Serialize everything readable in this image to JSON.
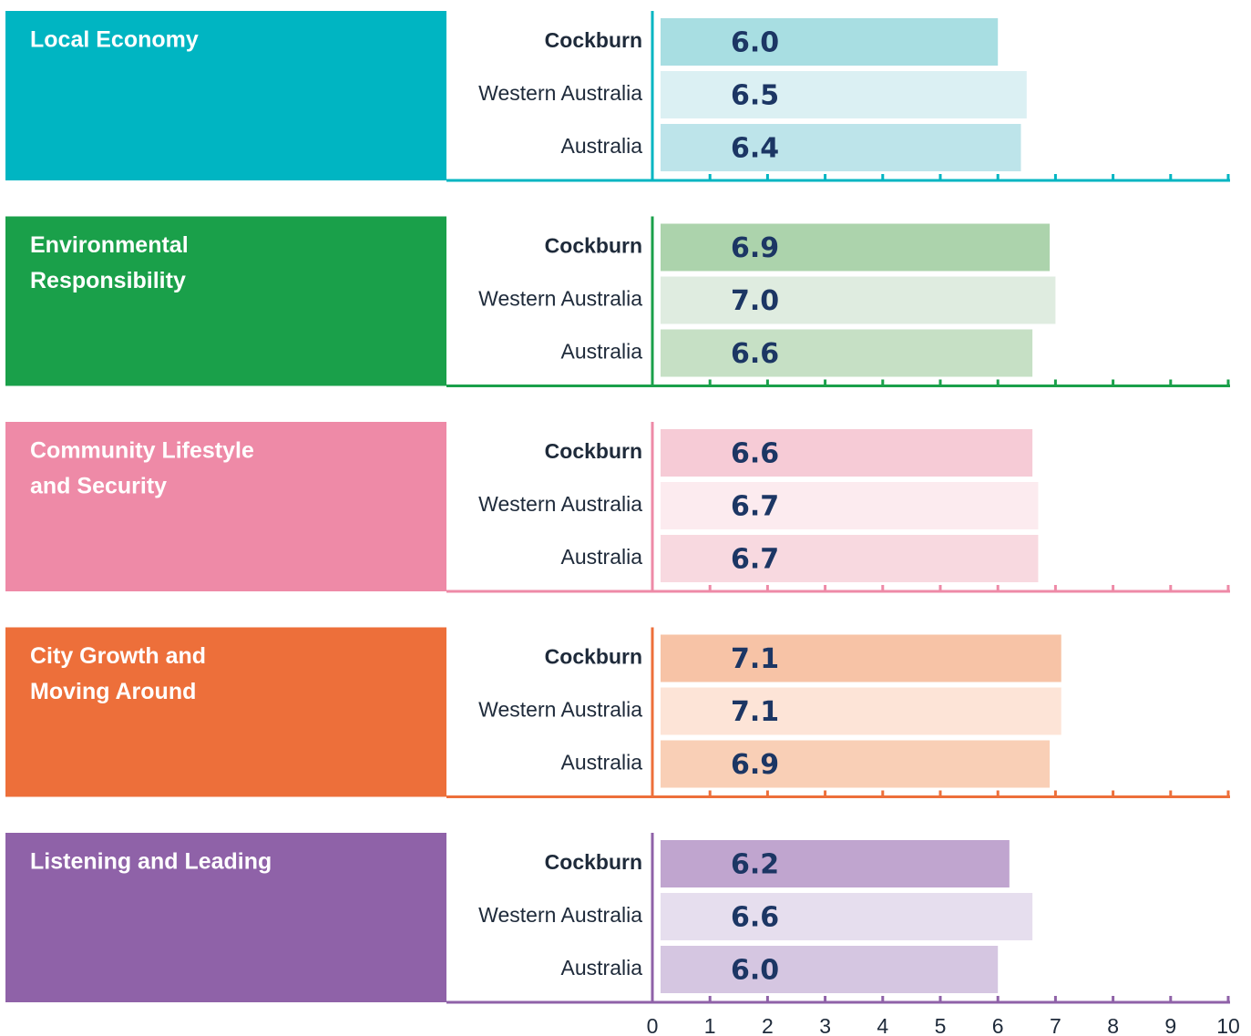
{
  "chart_data": [
    {
      "type": "hbar",
      "title": [
        "Local Economy"
      ],
      "color": "#00b5c2",
      "categories": [
        "Cockburn",
        "Western Australia",
        "Australia"
      ],
      "values": [
        6.0,
        6.5,
        6.4
      ],
      "value_labels": [
        "6.0",
        "6.5",
        "6.4"
      ],
      "colors": [
        "#a8dee2",
        "#dbf0f3",
        "#bde4ea"
      ],
      "xlim": [
        0,
        10
      ],
      "xticks": [
        0,
        1,
        2,
        3,
        4,
        5,
        6,
        7,
        8,
        9,
        10
      ]
    },
    {
      "type": "hbar",
      "title": [
        "Environmental",
        "Responsibility"
      ],
      "color": "#1aa04a",
      "categories": [
        "Cockburn",
        "Western Australia",
        "Australia"
      ],
      "values": [
        6.9,
        7.0,
        6.6
      ],
      "value_labels": [
        "6.9",
        "7.0",
        "6.6"
      ],
      "colors": [
        "#acd3ac",
        "#dfece0",
        "#c6e0c5"
      ],
      "xlim": [
        0,
        10
      ],
      "xticks": [
        0,
        1,
        2,
        3,
        4,
        5,
        6,
        7,
        8,
        9,
        10
      ]
    },
    {
      "type": "hbar",
      "title": [
        "Community Lifestyle",
        "and Security"
      ],
      "color": "#ee8aa7",
      "categories": [
        "Cockburn",
        "Western Australia",
        "Australia"
      ],
      "values": [
        6.6,
        6.7,
        6.7
      ],
      "value_labels": [
        "6.6",
        "6.7",
        "6.7"
      ],
      "colors": [
        "#f6cbd6",
        "#fcebef",
        "#f8d9e0"
      ],
      "xlim": [
        0,
        10
      ],
      "xticks": [
        0,
        1,
        2,
        3,
        4,
        5,
        6,
        7,
        8,
        9,
        10
      ]
    },
    {
      "type": "hbar",
      "title": [
        "City Growth and",
        "Moving Around"
      ],
      "color": "#ed6f3a",
      "categories": [
        "Cockburn",
        "Western Australia",
        "Australia"
      ],
      "values": [
        7.1,
        7.1,
        6.9
      ],
      "value_labels": [
        "7.1",
        "7.1",
        "6.9"
      ],
      "colors": [
        "#f7c3a6",
        "#fde4d7",
        "#f9cfb6"
      ],
      "xlim": [
        0,
        10
      ],
      "xticks": [
        0,
        1,
        2,
        3,
        4,
        5,
        6,
        7,
        8,
        9,
        10
      ]
    },
    {
      "type": "hbar",
      "title": [
        "Listening and Leading"
      ],
      "color": "#8f62a8",
      "categories": [
        "Cockburn",
        "Western Australia",
        "Australia"
      ],
      "values": [
        6.2,
        6.6,
        6.0
      ],
      "value_labels": [
        "6.2",
        "6.6",
        "6.0"
      ],
      "colors": [
        "#c0a5cf",
        "#e6deee",
        "#d5c6e1"
      ],
      "xlim": [
        0,
        10
      ],
      "xticks": [
        0,
        1,
        2,
        3,
        4,
        5,
        6,
        7,
        8,
        9,
        10
      ]
    }
  ]
}
